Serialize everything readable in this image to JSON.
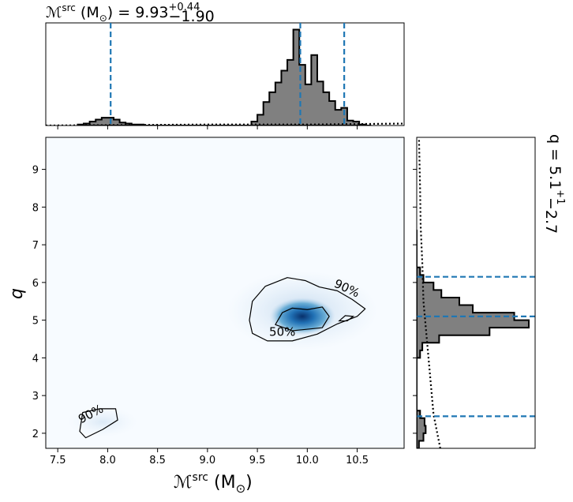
{
  "chart_data": [
    {
      "type": "histogram",
      "panel": "top-marginal",
      "title_main": "ℳ",
      "title_sup": "src",
      "title_unit": "(M",
      "title_unit_sub": "⊙",
      "title_unit_close": ")",
      "title_eq": "= 9.93",
      "title_plus": "+0.44",
      "title_minus": "−1.90",
      "xlim": [
        7.38,
        10.97
      ],
      "ylim": [
        0,
        1.0
      ],
      "bin_edges": [
        7.7,
        7.76,
        7.82,
        7.88,
        7.94,
        8.0,
        8.06,
        8.12,
        8.18,
        8.24,
        8.3,
        8.36,
        8.42,
        8.48,
        8.54,
        8.6,
        8.66,
        8.72,
        8.78,
        8.84,
        8.9,
        8.96,
        9.02,
        9.08,
        9.14,
        9.2,
        9.26,
        9.32,
        9.38,
        9.44,
        9.5,
        9.56,
        9.62,
        9.68,
        9.74,
        9.8,
        9.86,
        9.92,
        9.98,
        10.04,
        10.1,
        10.16,
        10.22,
        10.28,
        10.34,
        10.4,
        10.46,
        10.52,
        10.58,
        10.64
      ],
      "counts": [
        0.01,
        0.02,
        0.04,
        0.06,
        0.08,
        0.08,
        0.06,
        0.03,
        0.02,
        0.01,
        0.01,
        0,
        0,
        0,
        0,
        0,
        0,
        0,
        0,
        0,
        0,
        0,
        0,
        0,
        0,
        0,
        0,
        0,
        0,
        0.04,
        0.11,
        0.24,
        0.34,
        0.44,
        0.56,
        0.67,
        0.98,
        0.62,
        0.42,
        0.72,
        0.45,
        0.34,
        0.25,
        0.16,
        0.18,
        0.05,
        0.04,
        0.01,
        0
      ],
      "prior_line": [
        [
          7.38,
          0.0
        ],
        [
          8.2,
          0.005
        ],
        [
          9.0,
          0.01
        ],
        [
          9.5,
          0.01
        ],
        [
          10.0,
          0.01
        ],
        [
          10.5,
          0.015
        ],
        [
          10.97,
          0.02
        ]
      ],
      "quantile_lines": [
        8.03,
        9.93,
        10.37
      ],
      "fill_color": "#808080",
      "quantile_color": "#1f77b4"
    },
    {
      "type": "heatmap",
      "panel": "joint",
      "xlabel_main": "ℳ",
      "xlabel_sup": "src",
      "xlabel_unit": "(M",
      "xlabel_unit_sub": "⊙",
      "xlabel_unit_close": ")",
      "ylabel": "q",
      "xlim": [
        7.38,
        10.97
      ],
      "ylim": [
        1.6,
        9.85
      ],
      "xticks": [
        "7.5",
        "8.0",
        "8.5",
        "9.0",
        "9.5",
        "10.0",
        "10.5"
      ],
      "xtick_values": [
        7.5,
        8.0,
        8.5,
        9.0,
        9.5,
        10.0,
        10.5
      ],
      "yticks": [
        "2",
        "3",
        "4",
        "5",
        "6",
        "7",
        "8",
        "9"
      ],
      "ytick_values": [
        2,
        3,
        4,
        5,
        6,
        7,
        8,
        9
      ],
      "peak": [
        9.95,
        5.1
      ],
      "contour_labels": [
        {
          "text": "90%",
          "x": 10.38,
          "y": 5.75,
          "rotate": 25
        },
        {
          "text": "50%",
          "x": 9.75,
          "y": 4.58,
          "rotate": 0
        },
        {
          "text": "90%",
          "x": 7.85,
          "y": 2.42,
          "rotate": -28
        }
      ],
      "contour_90_main": [
        [
          9.42,
          5.0
        ],
        [
          9.45,
          5.5
        ],
        [
          9.58,
          5.9
        ],
        [
          9.8,
          6.13
        ],
        [
          9.98,
          6.05
        ],
        [
          10.12,
          5.88
        ],
        [
          10.3,
          5.78
        ],
        [
          10.45,
          5.55
        ],
        [
          10.58,
          5.3
        ],
        [
          10.5,
          5.1
        ],
        [
          10.3,
          4.9
        ],
        [
          10.1,
          4.63
        ],
        [
          9.85,
          4.45
        ],
        [
          9.6,
          4.45
        ],
        [
          9.45,
          4.65
        ],
        [
          9.42,
          5.0
        ]
      ],
      "contour_90_small": [
        [
          7.72,
          2.05
        ],
        [
          7.75,
          2.55
        ],
        [
          7.92,
          2.65
        ],
        [
          8.08,
          2.65
        ],
        [
          8.1,
          2.35
        ],
        [
          7.95,
          2.1
        ],
        [
          7.78,
          1.88
        ],
        [
          7.72,
          2.05
        ]
      ],
      "contour_50": [
        [
          9.68,
          4.88
        ],
        [
          9.75,
          5.2
        ],
        [
          9.85,
          5.32
        ],
        [
          10.0,
          5.28
        ],
        [
          10.15,
          5.35
        ],
        [
          10.22,
          5.1
        ],
        [
          10.15,
          4.8
        ],
        [
          9.85,
          4.72
        ],
        [
          9.68,
          4.88
        ]
      ],
      "contour_50_islet": [
        [
          10.32,
          4.98
        ],
        [
          10.38,
          5.12
        ],
        [
          10.46,
          5.1
        ],
        [
          10.4,
          4.98
        ],
        [
          10.32,
          4.98
        ]
      ],
      "colormap": "Blues"
    },
    {
      "type": "histogram",
      "panel": "right-marginal",
      "orientation": "horizontal",
      "title_main": "q = 5.1",
      "title_plus": "+1",
      "title_minus": "−2.7",
      "ylim": [
        1.6,
        9.85
      ],
      "bin_edges": [
        1.6,
        1.8,
        2.0,
        2.2,
        2.4,
        2.6,
        2.8,
        3.0,
        3.2,
        3.4,
        3.6,
        3.8,
        4.0,
        4.2,
        4.4,
        4.6,
        4.8,
        5.0,
        5.2,
        5.4,
        5.6,
        5.8,
        6.0,
        6.2,
        6.4,
        6.6,
        6.8,
        7.0,
        7.2,
        7.4
      ],
      "counts": [
        0.02,
        0.06,
        0.08,
        0.07,
        0.03,
        0.0,
        0.0,
        0.0,
        0.0,
        0.0,
        0.0,
        0.0,
        0.03,
        0.05,
        0.2,
        0.65,
        1.0,
        0.87,
        0.5,
        0.38,
        0.22,
        0.15,
        0.06,
        0.03,
        0.0,
        0.0,
        0.0,
        0.0,
        0.0
      ],
      "prior_line": [
        [
          0.21,
          1.6
        ],
        [
          0.15,
          2.5
        ],
        [
          0.12,
          3.5
        ],
        [
          0.09,
          4.5
        ],
        [
          0.06,
          5.5
        ],
        [
          0.05,
          6.5
        ],
        [
          0.035,
          7.5
        ],
        [
          0.03,
          8.5
        ],
        [
          0.02,
          9.85
        ]
      ],
      "quantile_lines": [
        2.45,
        5.1,
        6.15
      ],
      "fill_color": "#808080",
      "quantile_color": "#1f77b4"
    }
  ]
}
